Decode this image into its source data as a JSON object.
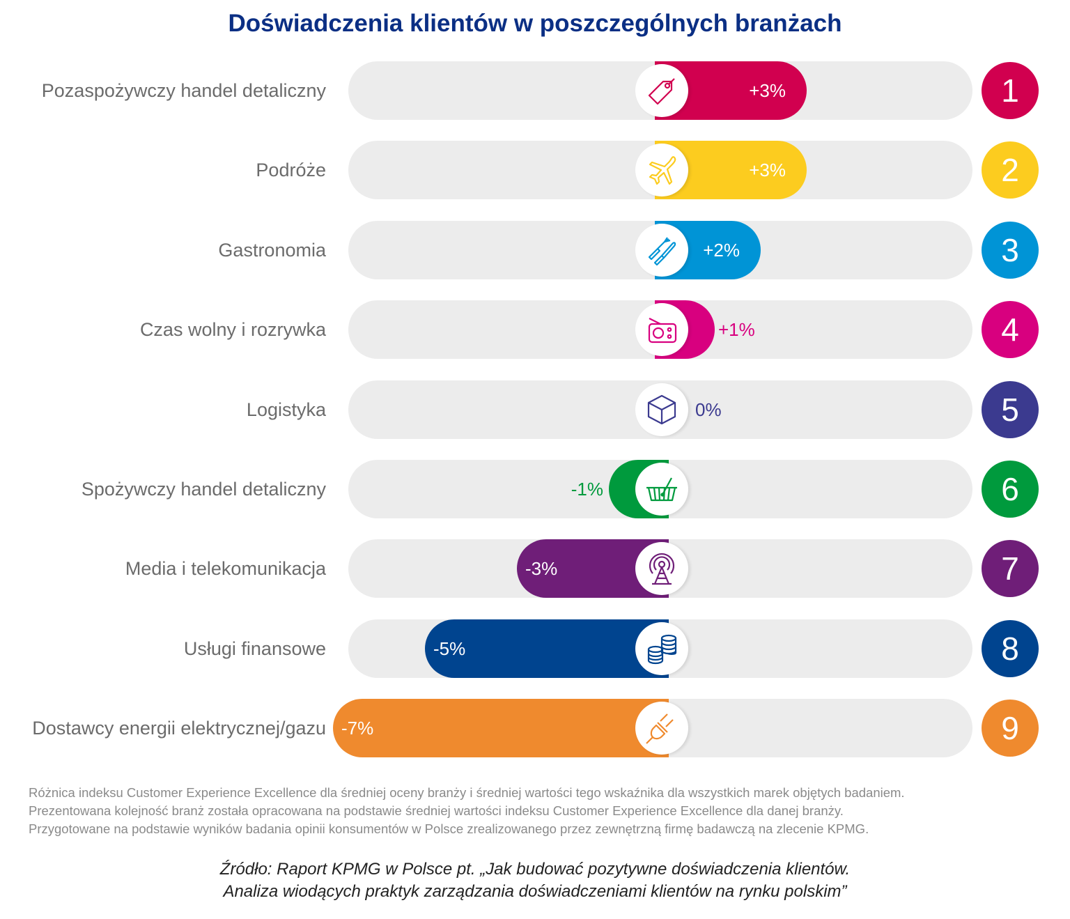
{
  "chart_data": {
    "type": "bar",
    "orientation": "horizontal",
    "title": "Doświadczenia klientów w poszczególnych branżach",
    "xlabel": "",
    "ylabel": "",
    "unit": "%",
    "xlim": [
      -7,
      3.5
    ],
    "grid": false,
    "legend": "none",
    "categories": [
      "Pozaspożywczy handel detaliczny",
      "Podróże",
      "Gastronomia",
      "Czas wolny i rozrywka",
      "Logistyka",
      "Spożywczy handel detaliczny",
      "Media i telekomunikacja",
      "Usługi finansowe",
      "Dostawcy energii elektrycznej/gazu"
    ],
    "values": [
      3,
      3,
      2,
      1,
      0,
      -1,
      -3,
      -5,
      -7
    ],
    "value_labels": [
      "+3%",
      "+3%",
      "+2%",
      "+1%",
      "0%",
      "-1%",
      "-3%",
      "-5%",
      "-7%"
    ],
    "ranks": [
      "1",
      "2",
      "3",
      "4",
      "5",
      "6",
      "7",
      "8",
      "9"
    ],
    "colors": [
      "#d1004f",
      "#fccc1f",
      "#0094d6",
      "#d8007f",
      "#3b3a8f",
      "#009a3d",
      "#6f1e78",
      "#00448f",
      "#ef8a2e"
    ],
    "icons": [
      "tag-icon",
      "airplane-icon",
      "cutlery-icon",
      "radio-icon",
      "box-icon",
      "shopping-basket-icon",
      "antenna-tower-icon",
      "coins-icon",
      "plug-icon"
    ]
  },
  "notes": [
    "Różnica indeksu Customer Experience Excellence dla średniej oceny branży i średniej wartości tego wskaźnika dla wszystkich marek objętych badaniem.",
    "Prezentowana kolejność branż została opracowana na podstawie średniej wartości indeksu Customer Experience Excellence dla danej branży.",
    "Przygotowane na podstawie wyników badania opinii konsumentów w Polsce zrealizowanego przez zewnętrzną firmę badawczą na zlecenie KPMG."
  ],
  "source": [
    "Źródło: Raport KPMG w Polsce pt. „Jak budować pozytywne doświadczenia klientów.",
    "Analiza wiodących praktyk zarządzania doświadczeniami klientów na rynku polskim”"
  ]
}
